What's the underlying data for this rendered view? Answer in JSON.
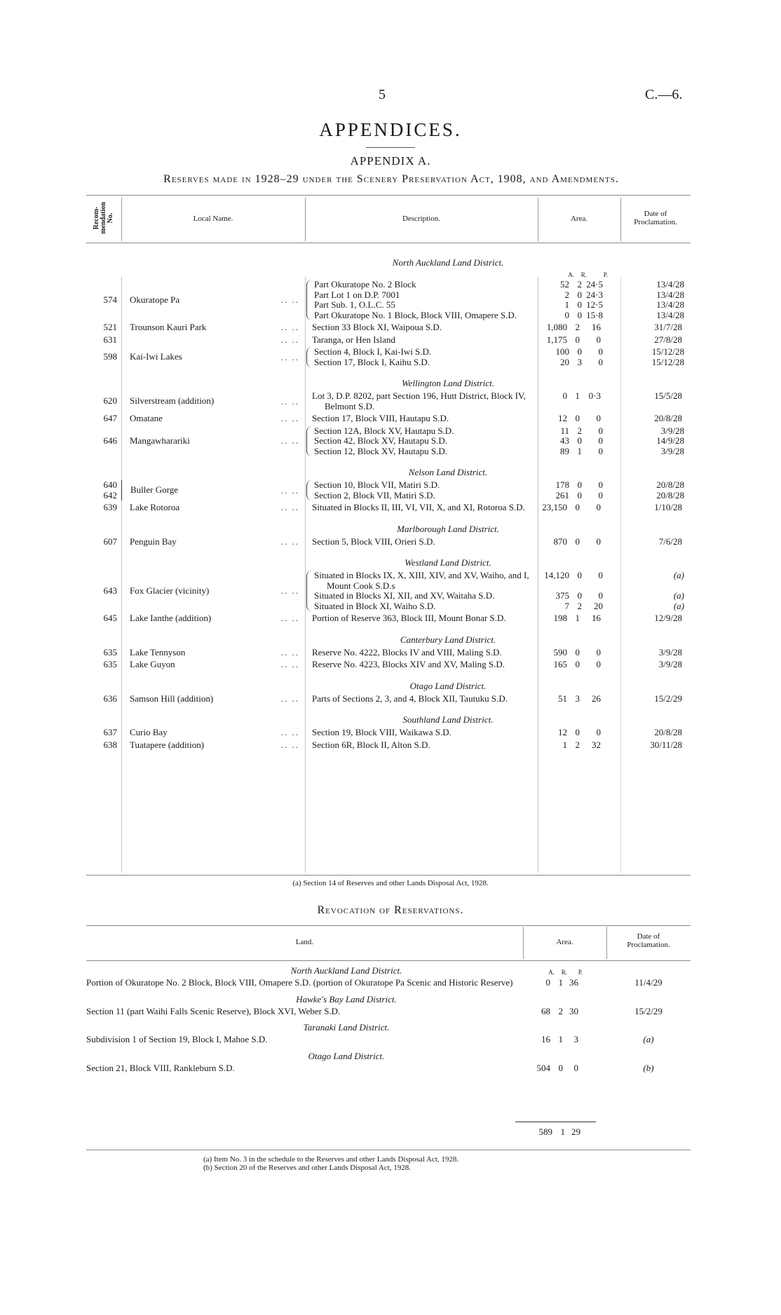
{
  "page": {
    "number": "5",
    "doc_ref": "C.—6."
  },
  "title": "APPENDICES.",
  "subtitle": "APPENDIX A.",
  "heading": "Reserves made in 1928–29 under the Scenery Preservation Act, 1908, and Amendments.",
  "table1": {
    "headers": {
      "no": "Recom-\nmendation\nNo.",
      "name": "Local Name.",
      "desc": "Description.",
      "area": "Area.",
      "date": "Date of\nProclamation."
    },
    "area_units": [
      "A.",
      "R.",
      "P."
    ],
    "districts": [
      {
        "name": "North Auckland Land District.",
        "show_units": true,
        "entries": [
          {
            "nos": [
              "574"
            ],
            "name": "Okuratope Pa",
            "parts": [
              {
                "desc": "Part Okuratope No. 2 Block",
                "a": "52",
                "r": "2",
                "p": "24·5",
                "date": "13/4/28"
              },
              {
                "desc": "Part Lot 1 on D.P. 7001",
                "a": "2",
                "r": "0",
                "p": "24·3",
                "date": "13/4/28"
              },
              {
                "desc": "Part Sub. 1, O.L.C. 55",
                "a": "1",
                "r": "0",
                "p": "12·5",
                "date": "13/4/28"
              },
              {
                "desc": "Part Okuratope No. 1 Block, Block VIII, Omapere S.D.",
                "a": "0",
                "r": "0",
                "p": "15·8",
                "date": "13/4/28"
              }
            ]
          },
          {
            "nos": [
              "521"
            ],
            "name": "Trounson Kauri Park",
            "parts": [
              {
                "desc": "Section 33 Block XI, Waipoua S.D.",
                "a": "1,080",
                "r": "2",
                "p": "16",
                "date": "31/7/28"
              }
            ]
          },
          {
            "nos": [
              "631"
            ],
            "name": "",
            "parts": [
              {
                "desc": "Taranga, or Hen Island",
                "a": "1,175",
                "r": "0",
                "p": "0",
                "date": "27/8/28"
              }
            ]
          },
          {
            "nos": [
              "598"
            ],
            "name": "Kai-Iwi Lakes",
            "parts": [
              {
                "desc": "Section 4, Block I, Kai-Iwi S.D.",
                "a": "100",
                "r": "0",
                "p": "0",
                "date": "15/12/28"
              },
              {
                "desc": "Section 17, Block I, Kaihu S.D.",
                "a": "20",
                "r": "3",
                "p": "0",
                "date": "15/12/28"
              }
            ]
          }
        ]
      },
      {
        "name": "Wellington Land District.",
        "entries": [
          {
            "nos": [
              "620"
            ],
            "name": "Silverstream (addition)",
            "parts": [
              {
                "desc": "Lot 3, D.P. 8202, part Section 196, Hutt District, Block IV, Belmont S.D.",
                "a": "0",
                "r": "1",
                "p": "0·3",
                "date": "15/5/28"
              }
            ]
          },
          {
            "nos": [
              "647"
            ],
            "name": "Omatane",
            "parts": [
              {
                "desc": "Section 17, Block VIII, Hautapu S.D.",
                "a": "12",
                "r": "0",
                "p": "0",
                "date": "20/8/28"
              }
            ]
          },
          {
            "nos": [
              "646"
            ],
            "name": "Mangawharariki",
            "parts": [
              {
                "desc": "Section 12A, Block XV, Hautapu S.D.",
                "a": "11",
                "r": "2",
                "p": "0",
                "date": "3/9/28"
              },
              {
                "desc": "Section 42, Block XV, Hautapu S.D.",
                "a": "43",
                "r": "0",
                "p": "0",
                "date": "14/9/28"
              },
              {
                "desc": "Section 12, Block XV, Hautapu S.D.",
                "a": "89",
                "r": "1",
                "p": "0",
                "date": "3/9/28"
              }
            ]
          }
        ]
      },
      {
        "name": "Nelson Land District.",
        "entries": [
          {
            "nos": [
              "640",
              "642"
            ],
            "name": "Buller Gorge",
            "parts": [
              {
                "desc": "Section 10, Block VII, Matiri S.D.",
                "a": "178",
                "r": "0",
                "p": "0",
                "date": "20/8/28"
              },
              {
                "desc": "Section 2, Block VII, Matiri S.D.",
                "a": "261",
                "r": "0",
                "p": "0",
                "date": "20/8/28"
              }
            ]
          },
          {
            "nos": [
              "639"
            ],
            "name": "Lake Rotoroa",
            "parts": [
              {
                "desc": "Situated in Blocks II, III, VI, VII, X, and XI, Rotoroa S.D.",
                "a": "23,150",
                "r": "0",
                "p": "0",
                "date": "1/10/28"
              }
            ]
          }
        ]
      },
      {
        "name": "Marlborough Land District.",
        "entries": [
          {
            "nos": [
              "607"
            ],
            "name": "Penguin Bay",
            "parts": [
              {
                "desc": "Section 5, Block VIII, Orieri S.D.",
                "a": "870",
                "r": "0",
                "p": "0",
                "date": "7/6/28"
              }
            ]
          }
        ]
      },
      {
        "name": "Westland Land District.",
        "entries": [
          {
            "nos": [
              "643"
            ],
            "name": "Fox Glacier (vicinity)",
            "parts": [
              {
                "desc": "Situated in Blocks IX, X, XIII, XIV, and XV, Waiho, and I, Mount Cook S.D.s",
                "a": "14,120",
                "r": "0",
                "p": "0",
                "date": "(a)"
              },
              {
                "desc": "Situated in Blocks XI, XII, and XV, Waitaha S.D.",
                "a": "375",
                "r": "0",
                "p": "0",
                "date": "(a)"
              },
              {
                "desc": "Situated in Block XI, Waiho S.D.",
                "a": "7",
                "r": "2",
                "p": "20",
                "date": "(a)"
              }
            ]
          },
          {
            "nos": [
              "645"
            ],
            "name": "Lake Ianthe (addition)",
            "parts": [
              {
                "desc": "Portion of Reserve 363, Block III, Mount Bonar S.D.",
                "a": "198",
                "r": "1",
                "p": "16",
                "date": "12/9/28"
              }
            ]
          }
        ]
      },
      {
        "name": "Canterbury Land District.",
        "entries": [
          {
            "nos": [
              "635"
            ],
            "name": "Lake Tennyson",
            "parts": [
              {
                "desc": "Reserve No. 4222, Blocks IV and VIII, Maling S.D.",
                "a": "590",
                "r": "0",
                "p": "0",
                "date": "3/9/28"
              }
            ]
          },
          {
            "nos": [
              "635"
            ],
            "name": "Lake Guyon",
            "parts": [
              {
                "desc": "Reserve No. 4223, Blocks XIV and XV, Maling S.D.",
                "a": "165",
                "r": "0",
                "p": "0",
                "date": "3/9/28"
              }
            ]
          }
        ]
      },
      {
        "name": "Otago Land District.",
        "entries": [
          {
            "nos": [
              "636"
            ],
            "name": "Samson Hill (addition)",
            "parts": [
              {
                "desc": "Parts of Sections 2, 3, and 4, Block XII, Tautuku S.D.",
                "a": "51",
                "r": "3",
                "p": "26",
                "date": "15/2/29"
              }
            ]
          }
        ]
      },
      {
        "name": "Southland Land District.",
        "entries": [
          {
            "nos": [
              "637"
            ],
            "name": "Curio Bay",
            "parts": [
              {
                "desc": "Section 19, Block VIII, Waikawa S.D.",
                "a": "12",
                "r": "0",
                "p": "0",
                "date": "20/8/28"
              }
            ]
          },
          {
            "nos": [
              "638"
            ],
            "name": "Tuatapere (addition)",
            "parts": [
              {
                "desc": "Section 6R, Block II, Alton S.D.",
                "a": "1",
                "r": "2",
                "p": "32",
                "date": "30/11/28"
              }
            ]
          }
        ]
      }
    ],
    "footnote": "(a) Section 14 of Reserves and other Lands Disposal Act, 1928."
  },
  "revocation": {
    "title": "Revocation of Reservations.",
    "headers": {
      "land": "Land.",
      "area": "Area.",
      "date": "Date of\nProclamation."
    },
    "area_units": [
      "A.",
      "R.",
      "P."
    ],
    "districts": [
      {
        "name": "North Auckland Land District.",
        "rows": [
          {
            "land": "Portion of Okuratope No. 2 Block, Block VIII, Omapere S.D. (portion of Okuratope Pa Scenic and Historic Reserve)",
            "a": "0",
            "r": "1",
            "p": "36",
            "date": "11/4/29"
          }
        ]
      },
      {
        "name": "Hawke's Bay Land District.",
        "rows": [
          {
            "land": "Section 11 (part Waihi Falls Scenic Reserve), Block XVI, Weber S.D.",
            "a": "68",
            "r": "2",
            "p": "30",
            "date": "15/2/29"
          }
        ]
      },
      {
        "name": "Taranaki Land District.",
        "rows": [
          {
            "land": "Subdivision 1 of Section 19, Block I, Mahoe S.D.",
            "a": "16",
            "r": "1",
            "p": "3",
            "date": "(a)"
          }
        ]
      },
      {
        "name": "Otago Land District.",
        "rows": [
          {
            "land": "Section 21, Block VIII, Rankleburn S.D.",
            "a": "504",
            "r": "0",
            "p": "0",
            "date": "(b)"
          }
        ]
      }
    ],
    "total": {
      "a": "589",
      "r": "1",
      "p": "29"
    },
    "footnotes": [
      "(a) Item No. 3 in the schedule to the Reserves and other Lands Disposal Act, 1928.",
      "(b) Section 20 of the Reserves and other Lands Disposal Act, 1928."
    ]
  }
}
